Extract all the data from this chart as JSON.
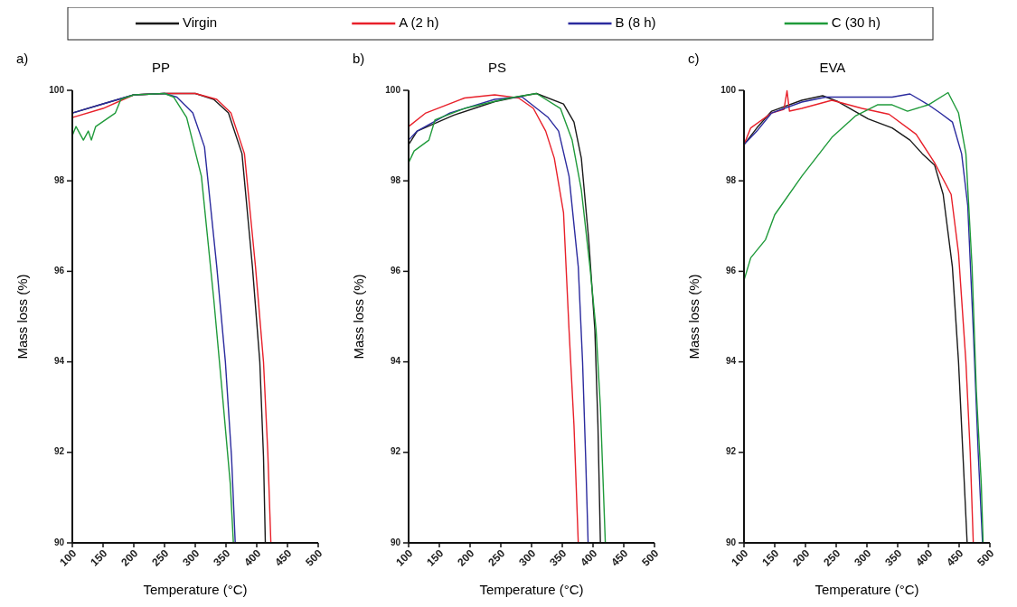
{
  "chart_data": [
    {
      "type": "line",
      "title": "PP",
      "annotations": [
        "a)"
      ],
      "xlabel": "Temperature (°C)",
      "ylabel": "Mass loss (%)",
      "xlim": [
        100,
        500
      ],
      "ylim": [
        90,
        100
      ],
      "xticks": [
        100,
        150,
        200,
        250,
        300,
        350,
        400,
        450,
        500
      ],
      "yticks": [
        90,
        92,
        94,
        96,
        98,
        100
      ],
      "legend": "top",
      "grid": false,
      "line_style": "solid",
      "marker": "none",
      "series": [
        {
          "name": "Virgin",
          "color": "#1a1a1a",
          "x": [
            100,
            150,
            200,
            250,
            300,
            330,
            354,
            376,
            393,
            405,
            411,
            414
          ],
          "values": [
            99.5,
            99.7,
            99.9,
            99.93,
            99.93,
            99.8,
            99.5,
            98.6,
            96.1,
            94.0,
            91.9,
            90
          ]
        },
        {
          "name": "A (2 h)",
          "color": "#e8202a",
          "x": [
            100,
            150,
            200,
            250,
            300,
            335,
            358,
            380,
            398,
            411,
            418,
            423
          ],
          "values": [
            99.4,
            99.6,
            99.9,
            99.93,
            99.93,
            99.8,
            99.5,
            98.6,
            96.1,
            94.0,
            92.0,
            90
          ]
        },
        {
          "name": "B (8 h)",
          "color": "#2b2b9e",
          "x": [
            100,
            150,
            200,
            250,
            270,
            296,
            315,
            335,
            349,
            359,
            365
          ],
          "values": [
            99.5,
            99.7,
            99.9,
            99.93,
            99.85,
            99.5,
            98.75,
            96.1,
            94.0,
            91.9,
            90
          ]
        },
        {
          "name": "C (30 h)",
          "color": "#1f9a3a",
          "x": [
            100,
            106,
            118,
            126,
            131,
            138,
            170,
            179,
            200,
            250,
            265,
            286,
            310,
            330,
            344,
            357,
            362
          ],
          "values": [
            99.0,
            99.2,
            98.9,
            99.1,
            98.9,
            99.2,
            99.5,
            99.8,
            99.9,
            99.93,
            99.85,
            99.4,
            98.1,
            95.4,
            93.3,
            91.3,
            90
          ]
        }
      ]
    },
    {
      "type": "line",
      "title": "PS",
      "annotations": [
        "b)"
      ],
      "xlabel": "Temperature (°C)",
      "ylabel": "Mass loss (%)",
      "xlim": [
        100,
        500
      ],
      "ylim": [
        90,
        100
      ],
      "xticks": [
        100,
        150,
        200,
        250,
        300,
        350,
        400,
        450,
        500
      ],
      "yticks": [
        90,
        92,
        94,
        96,
        98,
        100
      ],
      "grid": false,
      "line_style": "solid",
      "marker": "none",
      "series": [
        {
          "color": "#1a1a1a",
          "x": [
            100,
            114,
            173,
            240,
            279,
            308,
            352,
            369,
            381,
            393,
            403,
            408,
            412
          ],
          "values": [
            98.8,
            99.1,
            99.45,
            99.75,
            99.86,
            99.93,
            99.7,
            99.3,
            98.5,
            96.7,
            94.7,
            92.6,
            90
          ]
        },
        {
          "color": "#e8202a",
          "x": [
            100,
            128,
            191,
            240,
            279,
            303,
            323,
            337,
            352,
            361,
            369,
            376
          ],
          "values": [
            99.2,
            99.5,
            99.83,
            99.9,
            99.83,
            99.6,
            99.1,
            98.5,
            97.3,
            94.7,
            92.6,
            90
          ]
        },
        {
          "color": "#2b2b9e",
          "x": [
            100,
            114,
            167,
            240,
            284,
            313,
            327,
            344,
            361,
            376,
            383,
            388,
            392
          ],
          "values": [
            98.9,
            99.1,
            99.5,
            99.8,
            99.86,
            99.55,
            99.4,
            99.1,
            98.1,
            96.1,
            94.0,
            91.9,
            90
          ]
        },
        {
          "color": "#1f9a3a",
          "x": [
            100,
            109,
            133,
            143,
            191,
            264,
            308,
            347,
            366,
            381,
            395,
            405,
            412,
            420
          ],
          "values": [
            98.4,
            98.66,
            98.9,
            99.35,
            99.6,
            99.83,
            99.93,
            99.6,
            98.9,
            97.8,
            96.1,
            94.7,
            93.0,
            90
          ]
        }
      ]
    },
    {
      "type": "line",
      "title": "EVA",
      "annotations": [
        "c)"
      ],
      "xlabel": "Temperature (°C)",
      "ylabel": "Mass loss (%)",
      "xlim": [
        100,
        500
      ],
      "ylim": [
        90,
        100
      ],
      "xticks": [
        100,
        150,
        200,
        250,
        300,
        350,
        400,
        450,
        500
      ],
      "yticks": [
        90,
        92,
        94,
        96,
        98,
        100
      ],
      "grid": false,
      "line_style": "solid",
      "marker": "none",
      "series": [
        {
          "color": "#1a1a1a",
          "x": [
            100,
            121,
            145,
            194,
            228,
            253,
            302,
            341,
            370,
            390,
            410,
            424,
            439,
            449,
            456,
            463
          ],
          "values": [
            98.8,
            99.17,
            99.54,
            99.78,
            99.88,
            99.75,
            99.37,
            99.17,
            98.9,
            98.6,
            98.35,
            97.7,
            96.1,
            94.0,
            92.0,
            90
          ]
        },
        {
          "color": "#e8202a",
          "x": [
            100,
            111,
            145,
            165,
            170,
            174,
            194,
            243,
            292,
            336,
            380,
            410,
            437,
            449,
            461,
            468,
            473
          ],
          "values": [
            98.8,
            99.17,
            99.5,
            99.58,
            99.99,
            99.54,
            99.6,
            99.78,
            99.6,
            99.47,
            99.03,
            98.4,
            97.7,
            96.4,
            94.0,
            92.0,
            90
          ]
        },
        {
          "color": "#2b2b9e",
          "x": [
            100,
            121,
            145,
            194,
            233,
            292,
            341,
            370,
            400,
            419,
            439,
            454,
            464,
            473,
            481,
            488
          ],
          "values": [
            98.8,
            99.1,
            99.5,
            99.74,
            99.85,
            99.85,
            99.85,
            99.92,
            99.68,
            99.5,
            99.3,
            98.6,
            97.45,
            94.7,
            92.0,
            90
          ]
        },
        {
          "color": "#1f9a3a",
          "x": [
            100,
            111,
            135,
            150,
            194,
            243,
            282,
            317,
            341,
            366,
            400,
            432,
            449,
            461,
            471,
            478,
            486,
            489
          ],
          "values": [
            95.8,
            96.3,
            96.7,
            97.25,
            98.1,
            98.96,
            99.44,
            99.68,
            99.68,
            99.54,
            99.68,
            99.95,
            99.5,
            98.6,
            96.1,
            93.35,
            91.3,
            90
          ]
        }
      ]
    }
  ]
}
